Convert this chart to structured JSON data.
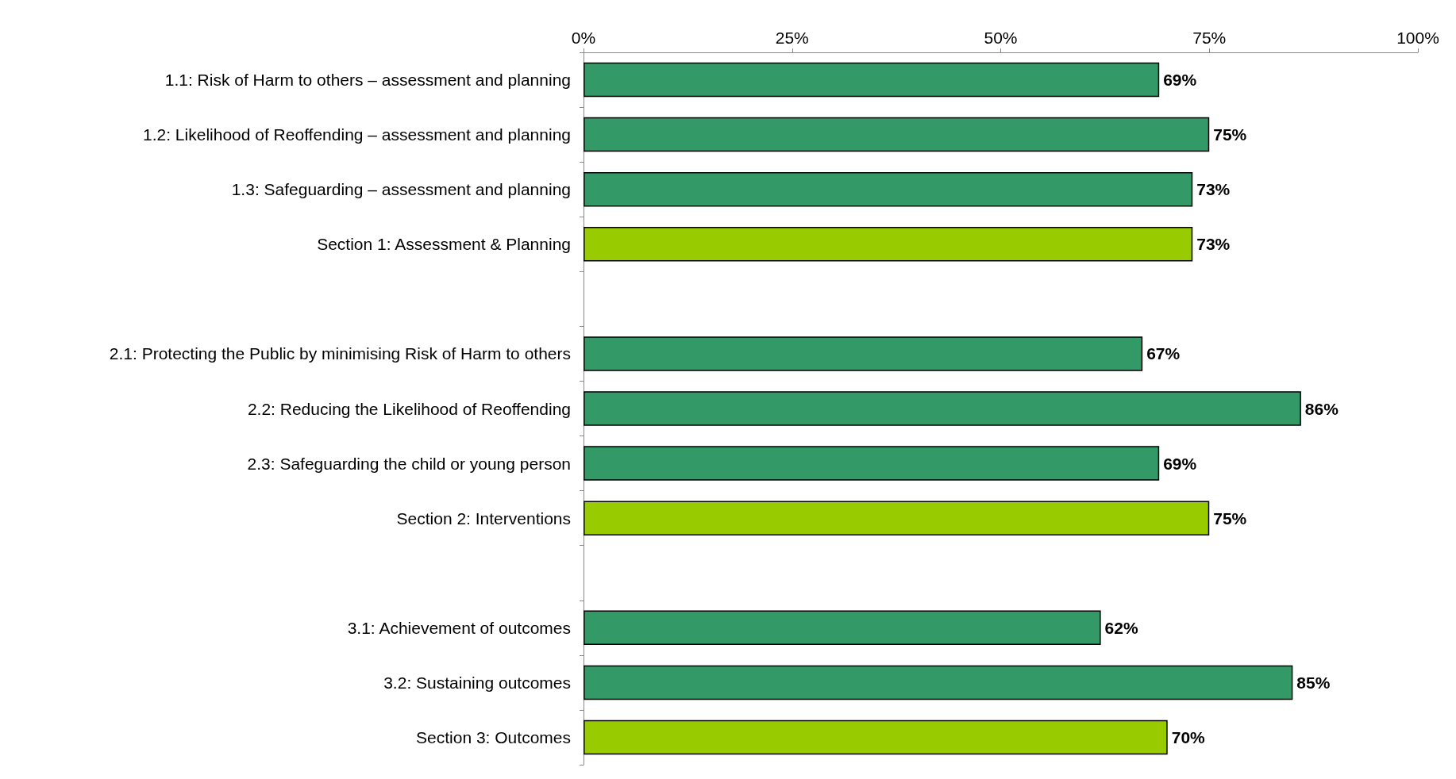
{
  "chart_data": {
    "type": "bar",
    "orientation": "horizontal",
    "categories": [
      "1.1: Risk of Harm to others – assessment and planning",
      "1.2: Likelihood of Reoffending – assessment and planning",
      "1.3: Safeguarding – assessment and planning",
      "Section 1: Assessment & Planning",
      null,
      "2.1: Protecting the Public by minimising Risk of Harm to others",
      "2.2: Reducing the Likelihood of Reoffending",
      "2.3: Safeguarding the child or young person",
      "Section 2: Interventions",
      null,
      "3.1: Achievement of outcomes",
      "3.2: Sustaining outcomes",
      "Section 3: Outcomes"
    ],
    "values": [
      69,
      75,
      73,
      73,
      null,
      67,
      86,
      69,
      75,
      null,
      62,
      85,
      70
    ],
    "colors": [
      "#339966",
      "#339966",
      "#339966",
      "#99cc00",
      null,
      "#339966",
      "#339966",
      "#339966",
      "#99cc00",
      null,
      "#339966",
      "#339966",
      "#99cc00"
    ],
    "value_labels": [
      "69%",
      "75%",
      "73%",
      "73%",
      null,
      "67%",
      "86%",
      "69%",
      "75%",
      null,
      "62%",
      "85%",
      "70%"
    ],
    "xlim": [
      0,
      100
    ],
    "xticks": [
      {
        "value": 0,
        "label": "0%"
      },
      {
        "value": 25,
        "label": "25%"
      },
      {
        "value": 50,
        "label": "50%"
      },
      {
        "value": 75,
        "label": "75%"
      },
      {
        "value": 100,
        "label": "100%"
      }
    ],
    "grid": false
  }
}
